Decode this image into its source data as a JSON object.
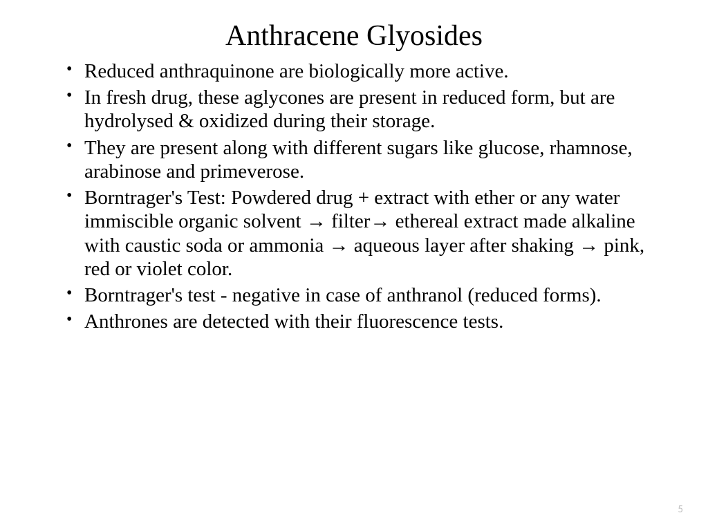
{
  "slide": {
    "title": "Anthracene Glyosides",
    "bullets": [
      "Reduced anthraquinone are biologically more active.",
      "In fresh drug, these aglycones are present in reduced form, but are hydrolysed & oxidized during their storage.",
      "They are present  along with different sugars like glucose, rhamnose, arabinose and primeverose.",
      "Borntrager's Test: Powdered drug + extract with ether or any water immiscible organic solvent → filter→ ethereal extract made alkaline with caustic soda or ammonia → aqueous layer after shaking → pink, red or violet color.",
      "Borntrager's test - negative in case of anthranol (reduced forms).",
      "Anthrones are detected with their fluorescence tests."
    ],
    "page_number": "5"
  },
  "style": {
    "background_color": "#ffffff",
    "text_color": "#000000",
    "page_num_color": "#bfbfbf",
    "title_fontsize": 42,
    "body_fontsize": 29,
    "font_family": "Times New Roman"
  }
}
